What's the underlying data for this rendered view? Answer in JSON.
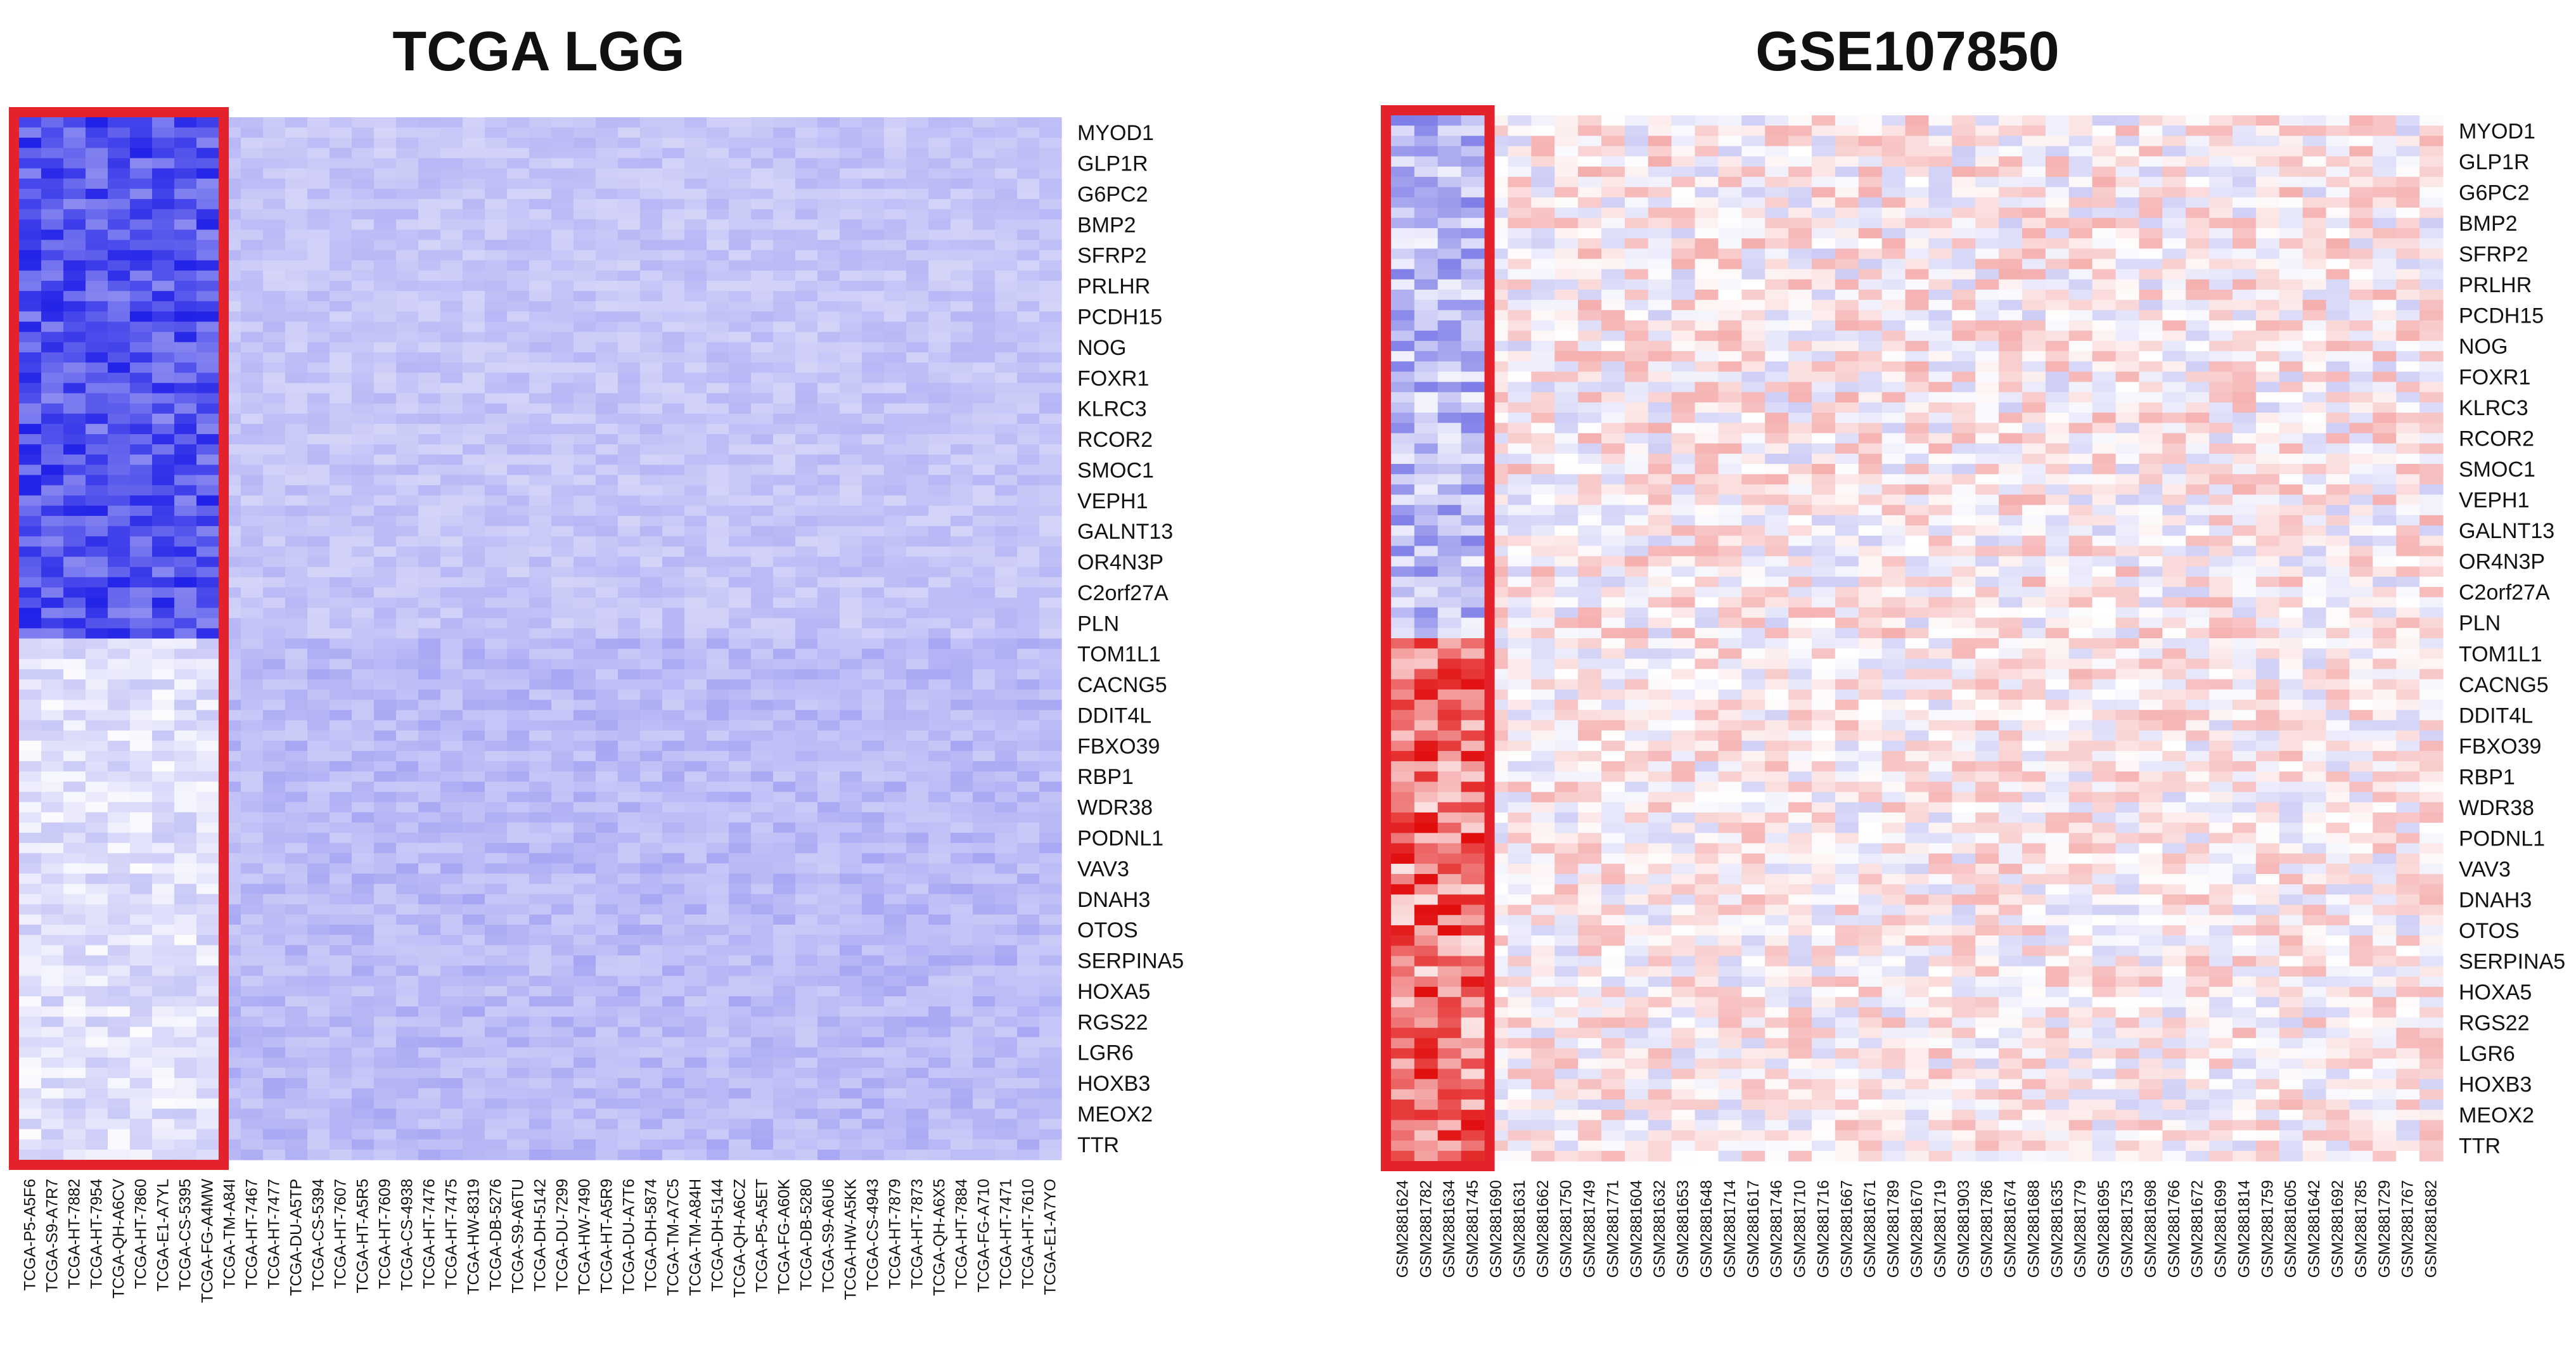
{
  "chart_data": [
    {
      "type": "heatmap",
      "title": "TCGA LGG",
      "color_scale": "blue",
      "low_color": "#ffffff",
      "mid_color": "#b3b3f5",
      "high_color": "#1010e6",
      "highlight_color": "#e3222b",
      "highlighted_samples": [
        "TCGA-P5-A5F6",
        "TCGA-S9-A7R7",
        "TCGA-HT-7882",
        "TCGA-HT-7954",
        "TCGA-QH-A6CV",
        "TCGA-HT-7860",
        "TCGA-E1-A7YL",
        "TCGA-CS-5395",
        "TCGA-FG-A4MW"
      ],
      "genes": [
        "MYOD1",
        "GLP1R",
        "G6PC2",
        "BMP2",
        "SFRP2",
        "PRLHR",
        "PCDH15",
        "NOG",
        "FOXR1",
        "KLRC3",
        "RCOR2",
        "SMOC1",
        "VEPH1",
        "GALNT13",
        "OR4N3P",
        "C2orf27A",
        "PLN",
        "TOM1L1",
        "CACNG5",
        "DDIT4L",
        "FBXO39",
        "RBP1",
        "WDR38",
        "PODNL1",
        "VAV3",
        "DNAH3",
        "OTOS",
        "SERPINA5",
        "HOXA5",
        "RGS22",
        "LGR6",
        "HOXB3",
        "MEOX2",
        "TTR"
      ],
      "samples": [
        "TCGA-P5-A5F6",
        "TCGA-S9-A7R7",
        "TCGA-HT-7882",
        "TCGA-HT-7954",
        "TCGA-QH-A6CV",
        "TCGA-HT-7860",
        "TCGA-E1-A7YL",
        "TCGA-CS-5395",
        "TCGA-FG-A4MW",
        "TCGA-TM-A84I",
        "TCGA-HT-7467",
        "TCGA-HT-7477",
        "TCGA-DU-A5TP",
        "TCGA-CS-5394",
        "TCGA-HT-7607",
        "TCGA-HT-A5R5",
        "TCGA-HT-7609",
        "TCGA-CS-4938",
        "TCGA-HT-7476",
        "TCGA-HT-7475",
        "TCGA-HW-8319",
        "TCGA-DB-5276",
        "TCGA-S9-A6TU",
        "TCGA-DH-5142",
        "TCGA-DU-7299",
        "TCGA-HW-7490",
        "TCGA-HT-A5R9",
        "TCGA-DU-A7T6",
        "TCGA-DH-5874",
        "TCGA-TM-A7C5",
        "TCGA-TM-A84H",
        "TCGA-DH-5144",
        "TCGA-QH-A6CZ",
        "TCGA-P5-A5ET",
        "TCGA-FG-A60K",
        "TCGA-DB-5280",
        "TCGA-S9-A6U6",
        "TCGA-HW-A5KK",
        "TCGA-CS-4943",
        "TCGA-HT-7879",
        "TCGA-HT-7873",
        "TCGA-QH-A6X5",
        "TCGA-HT-7884",
        "TCGA-FG-A710",
        "TCGA-HT-7471",
        "TCGA-HT-7610",
        "TCGA-E1-A7YO"
      ]
    },
    {
      "type": "heatmap",
      "title": "GSE107850",
      "color_scale": "red-blue",
      "low_color": "#2323d8",
      "mid_color": "#ffffff",
      "high_color": "#e00000",
      "highlight_color": "#e3222b",
      "highlighted_samples": [
        "GSM2881624",
        "GSM2881782",
        "GSM2881634",
        "GSM2881745"
      ],
      "genes": [
        "MYOD1",
        "GLP1R",
        "G6PC2",
        "BMP2",
        "SFRP2",
        "PRLHR",
        "PCDH15",
        "NOG",
        "FOXR1",
        "KLRC3",
        "RCOR2",
        "SMOC1",
        "VEPH1",
        "GALNT13",
        "OR4N3P",
        "C2orf27A",
        "PLN",
        "TOM1L1",
        "CACNG5",
        "DDIT4L",
        "FBXO39",
        "RBP1",
        "WDR38",
        "PODNL1",
        "VAV3",
        "DNAH3",
        "OTOS",
        "SERPINA5",
        "HOXA5",
        "RGS22",
        "LGR6",
        "HOXB3",
        "MEOX2",
        "TTR"
      ],
      "samples": [
        "GSM2881624",
        "GSM2881782",
        "GSM2881634",
        "GSM2881745",
        "GSM2881690",
        "GSM2881631",
        "GSM2881662",
        "GSM2881750",
        "GSM2881749",
        "GSM2881771",
        "GSM2881604",
        "GSM2881632",
        "GSM2881653",
        "GSM2881648",
        "GSM2881714",
        "GSM2881617",
        "GSM2881746",
        "GSM2881710",
        "GSM2881716",
        "GSM2881667",
        "GSM2881671",
        "GSM2881789",
        "GSM2881670",
        "GSM2881719",
        "GSM2881903",
        "GSM2881786",
        "GSM2881674",
        "GSM2881688",
        "GSM2881635",
        "GSM2881779",
        "GSM2881695",
        "GSM2881753",
        "GSM2881698",
        "GSM2881766",
        "GSM2881672",
        "GSM2881699",
        "GSM2881814",
        "GSM2881759",
        "GSM2881605",
        "GSM2881642",
        "GSM2881692",
        "GSM2881785",
        "GSM2881729",
        "GSM2881767",
        "GSM2881682"
      ]
    }
  ]
}
